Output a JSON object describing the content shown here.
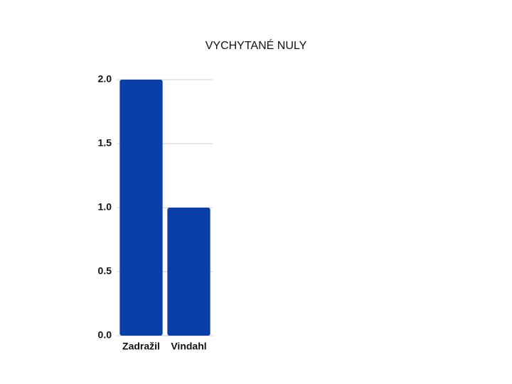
{
  "chart_data": {
    "type": "bar",
    "title": "VYCHYTANÉ NULY",
    "categories": [
      "Zadražil",
      "Vindahl"
    ],
    "values": [
      2,
      1
    ],
    "color": "#0a3fa8",
    "ylim": [
      0,
      2
    ],
    "yticks": [
      {
        "value": 0,
        "label": "0.0"
      },
      {
        "value": 0.5,
        "label": "0.5"
      },
      {
        "value": 1,
        "label": "1.0"
      },
      {
        "value": 1.5,
        "label": "1.5"
      },
      {
        "value": 2,
        "label": "2.0"
      }
    ],
    "grid": true
  }
}
